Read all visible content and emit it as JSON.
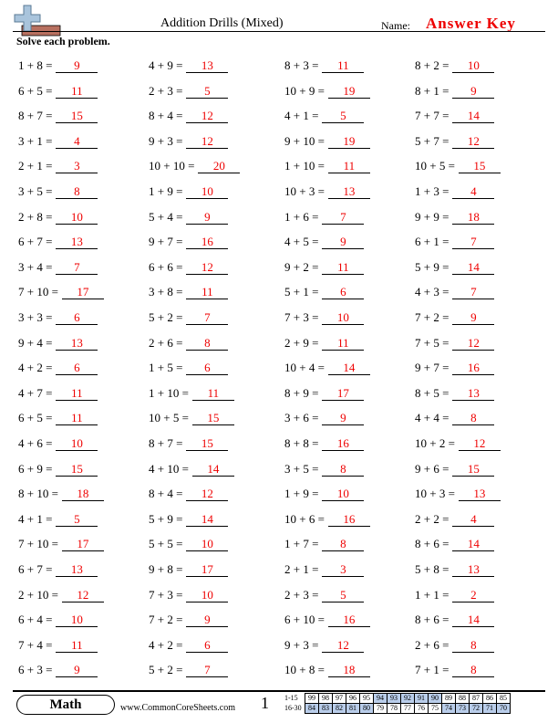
{
  "header": {
    "title": "Addition Drills (Mixed)",
    "name_label": "Name:",
    "answer_key": "Answer Key",
    "instructions": "Solve each problem."
  },
  "rows": [
    [
      {
        "q": "1 + 8 =",
        "a": "9"
      },
      {
        "q": "4 + 9 =",
        "a": "13"
      },
      {
        "q": "8 + 3 =",
        "a": "11"
      },
      {
        "q": "8 + 2 =",
        "a": "10"
      }
    ],
    [
      {
        "q": "6 + 5 =",
        "a": "11"
      },
      {
        "q": "2 + 3 =",
        "a": "5"
      },
      {
        "q": "10 + 9 =",
        "a": "19"
      },
      {
        "q": "8 + 1 =",
        "a": "9"
      }
    ],
    [
      {
        "q": "8 + 7 =",
        "a": "15"
      },
      {
        "q": "8 + 4 =",
        "a": "12"
      },
      {
        "q": "4 + 1 =",
        "a": "5"
      },
      {
        "q": "7 + 7 =",
        "a": "14"
      }
    ],
    [
      {
        "q": "3 + 1 =",
        "a": "4"
      },
      {
        "q": "9 + 3 =",
        "a": "12"
      },
      {
        "q": "9 + 10 =",
        "a": "19"
      },
      {
        "q": "5 + 7 =",
        "a": "12"
      }
    ],
    [
      {
        "q": "2 + 1 =",
        "a": "3"
      },
      {
        "q": "10 + 10 =",
        "a": "20"
      },
      {
        "q": "1 + 10 =",
        "a": "11"
      },
      {
        "q": "10 + 5 =",
        "a": "15"
      }
    ],
    [
      {
        "q": "3 + 5 =",
        "a": "8"
      },
      {
        "q": "1 + 9 =",
        "a": "10"
      },
      {
        "q": "10 + 3 =",
        "a": "13"
      },
      {
        "q": "1 + 3 =",
        "a": "4"
      }
    ],
    [
      {
        "q": "2 + 8 =",
        "a": "10"
      },
      {
        "q": "5 + 4 =",
        "a": "9"
      },
      {
        "q": "1 + 6 =",
        "a": "7"
      },
      {
        "q": "9 + 9 =",
        "a": "18"
      }
    ],
    [
      {
        "q": "6 + 7 =",
        "a": "13"
      },
      {
        "q": "9 + 7 =",
        "a": "16"
      },
      {
        "q": "4 + 5 =",
        "a": "9"
      },
      {
        "q": "6 + 1 =",
        "a": "7"
      }
    ],
    [
      {
        "q": "3 + 4 =",
        "a": "7"
      },
      {
        "q": "6 + 6 =",
        "a": "12"
      },
      {
        "q": "9 + 2 =",
        "a": "11"
      },
      {
        "q": "5 + 9 =",
        "a": "14"
      }
    ],
    [
      {
        "q": "7 + 10 =",
        "a": "17"
      },
      {
        "q": "3 + 8 =",
        "a": "11"
      },
      {
        "q": "5 + 1 =",
        "a": "6"
      },
      {
        "q": "4 + 3 =",
        "a": "7"
      }
    ],
    [
      {
        "q": "3 + 3 =",
        "a": "6"
      },
      {
        "q": "5 + 2 =",
        "a": "7"
      },
      {
        "q": "7 + 3 =",
        "a": "10"
      },
      {
        "q": "7 + 2 =",
        "a": "9"
      }
    ],
    [
      {
        "q": "9 + 4 =",
        "a": "13"
      },
      {
        "q": "2 + 6 =",
        "a": "8"
      },
      {
        "q": "2 + 9 =",
        "a": "11"
      },
      {
        "q": "7 + 5 =",
        "a": "12"
      }
    ],
    [
      {
        "q": "4 + 2 =",
        "a": "6"
      },
      {
        "q": "1 + 5 =",
        "a": "6"
      },
      {
        "q": "10 + 4 =",
        "a": "14"
      },
      {
        "q": "9 + 7 =",
        "a": "16"
      }
    ],
    [
      {
        "q": "4 + 7 =",
        "a": "11"
      },
      {
        "q": "1 + 10 =",
        "a": "11"
      },
      {
        "q": "8 + 9 =",
        "a": "17"
      },
      {
        "q": "8 + 5 =",
        "a": "13"
      }
    ],
    [
      {
        "q": "6 + 5 =",
        "a": "11"
      },
      {
        "q": "10 + 5 =",
        "a": "15"
      },
      {
        "q": "3 + 6 =",
        "a": "9"
      },
      {
        "q": "4 + 4 =",
        "a": "8"
      }
    ],
    [
      {
        "q": "4 + 6 =",
        "a": "10"
      },
      {
        "q": "8 + 7 =",
        "a": "15"
      },
      {
        "q": "8 + 8 =",
        "a": "16"
      },
      {
        "q": "10 + 2 =",
        "a": "12"
      }
    ],
    [
      {
        "q": "6 + 9 =",
        "a": "15"
      },
      {
        "q": "4 + 10 =",
        "a": "14"
      },
      {
        "q": "3 + 5 =",
        "a": "8"
      },
      {
        "q": "9 + 6 =",
        "a": "15"
      }
    ],
    [
      {
        "q": "8 + 10 =",
        "a": "18"
      },
      {
        "q": "8 + 4 =",
        "a": "12"
      },
      {
        "q": "1 + 9 =",
        "a": "10"
      },
      {
        "q": "10 + 3 =",
        "a": "13"
      }
    ],
    [
      {
        "q": "4 + 1 =",
        "a": "5"
      },
      {
        "q": "5 + 9 =",
        "a": "14"
      },
      {
        "q": "10 + 6 =",
        "a": "16"
      },
      {
        "q": "2 + 2 =",
        "a": "4"
      }
    ],
    [
      {
        "q": "7 + 10 =",
        "a": "17"
      },
      {
        "q": "5 + 5 =",
        "a": "10"
      },
      {
        "q": "1 + 7 =",
        "a": "8"
      },
      {
        "q": "8 + 6 =",
        "a": "14"
      }
    ],
    [
      {
        "q": "6 + 7 =",
        "a": "13"
      },
      {
        "q": "9 + 8 =",
        "a": "17"
      },
      {
        "q": "2 + 1 =",
        "a": "3"
      },
      {
        "q": "5 + 8 =",
        "a": "13"
      }
    ],
    [
      {
        "q": "2 + 10 =",
        "a": "12"
      },
      {
        "q": "7 + 3 =",
        "a": "10"
      },
      {
        "q": "2 + 3 =",
        "a": "5"
      },
      {
        "q": "1 + 1 =",
        "a": "2"
      }
    ],
    [
      {
        "q": "6 + 4 =",
        "a": "10"
      },
      {
        "q": "7 + 2 =",
        "a": "9"
      },
      {
        "q": "6 + 10 =",
        "a": "16"
      },
      {
        "q": "8 + 6 =",
        "a": "14"
      }
    ],
    [
      {
        "q": "7 + 4 =",
        "a": "11"
      },
      {
        "q": "4 + 2 =",
        "a": "6"
      },
      {
        "q": "9 + 3 =",
        "a": "12"
      },
      {
        "q": "2 + 6 =",
        "a": "8"
      }
    ],
    [
      {
        "q": "6 + 3 =",
        "a": "9"
      },
      {
        "q": "5 + 2 =",
        "a": "7"
      },
      {
        "q": "10 + 8 =",
        "a": "18"
      },
      {
        "q": "7 + 1 =",
        "a": "8"
      }
    ]
  ],
  "footer": {
    "subject": "Math",
    "website": "www.CommonCoreSheets.com",
    "page": "1",
    "score_table": [
      {
        "label": "1-15",
        "scores": [
          "99",
          "98",
          "97",
          "96",
          "95",
          "94",
          "93",
          "92",
          "91",
          "90",
          "89",
          "88",
          "87",
          "86",
          "85"
        ]
      },
      {
        "label": "16-30",
        "scores": [
          "84",
          "83",
          "82",
          "81",
          "80",
          "79",
          "78",
          "77",
          "76",
          "75",
          "74",
          "73",
          "72",
          "71",
          "70"
        ]
      }
    ]
  }
}
